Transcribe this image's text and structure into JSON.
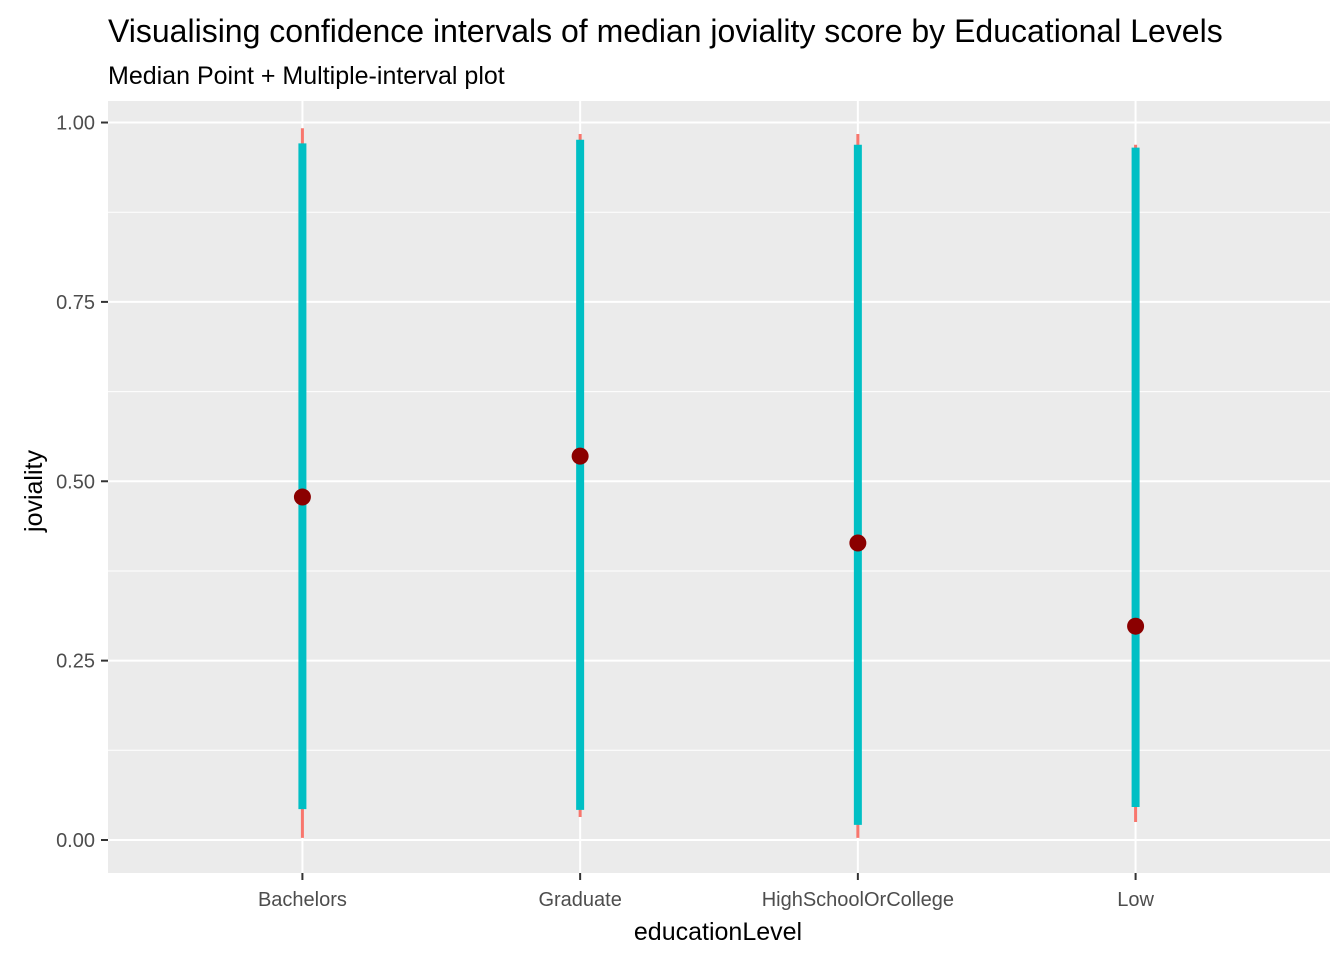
{
  "chart_data": {
    "type": "pointinterval",
    "title": "Visualising confidence intervals of median joviality score by Educational Levels",
    "subtitle": "Median Point + Multiple-interval plot",
    "xlabel": "educationLevel",
    "ylabel": "joviality",
    "categories": [
      "Bachelors",
      "Graduate",
      "HighSchoolOrCollege",
      "Low"
    ],
    "y_ticks": [
      0.0,
      0.25,
      0.5,
      0.75,
      1.0
    ],
    "y_tick_labels": [
      "0.00",
      "0.25",
      "0.50",
      "0.75",
      "1.00"
    ],
    "ylim": [
      -0.046,
      1.03
    ],
    "grid": true,
    "legend": "none",
    "series": [
      {
        "medians": [
          0.478,
          0.535,
          0.414,
          0.298
        ],
        "intervals": [
          {
            "level": "outer",
            "color": "#F8766D",
            "lower": [
              0.003,
              0.032,
              0.003,
              0.025
            ],
            "upper": [
              0.992,
              0.984,
              0.984,
              0.969
            ]
          },
          {
            "level": "inner",
            "color": "#00BFC4",
            "lower": [
              0.043,
              0.042,
              0.021,
              0.046
            ],
            "upper": [
              0.971,
              0.976,
              0.969,
              0.965
            ]
          }
        ]
      }
    ],
    "colors": {
      "panel": "#EBEBEB",
      "grid": "#FFFFFF",
      "median_point": "#8B0000"
    }
  }
}
